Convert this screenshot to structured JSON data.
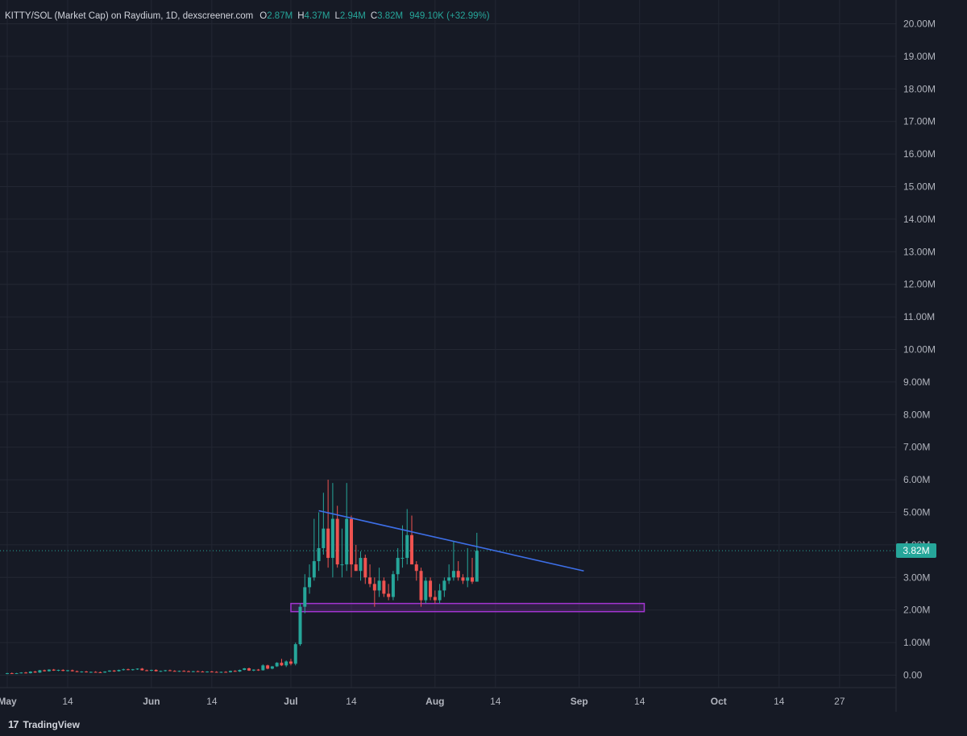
{
  "legend": {
    "symbol": "KITTY/SOL (Market Cap) on Raydium, 1D, dexscreener.com",
    "open_label": "O",
    "open": "2.87M",
    "high_label": "H",
    "high": "4.37M",
    "low_label": "L",
    "low": "2.94M",
    "close_label": "C",
    "close": "3.82M",
    "change": "949.10K (+32.99%)"
  },
  "price_tag": "3.82M",
  "brand": {
    "logo": "17",
    "name": "TradingView"
  },
  "colors": {
    "background": "#161a25",
    "grid": "#232733",
    "up": "#26a69a",
    "down": "#ef5350",
    "trendline": "#3d6fe8",
    "support_zone": "#a335d1",
    "text": "#b2b5be"
  },
  "chart_data": {
    "type": "candlestick",
    "title": "KITTY/SOL (Market Cap) on Raydium, 1D, dexscreener.com",
    "xlabel": "",
    "ylabel": "",
    "y_ticks": [
      "0.00",
      "1.00M",
      "2.00M",
      "3.00M",
      "4.00M",
      "5.00M",
      "6.00M",
      "7.00M",
      "8.00M",
      "9.00M",
      "10.00M",
      "11.00M",
      "12.00M",
      "13.00M",
      "14.00M",
      "15.00M",
      "16.00M",
      "17.00M",
      "18.00M",
      "19.00M",
      "20.00M"
    ],
    "ylim": [
      0,
      20
    ],
    "y_unit": "M",
    "x_ticks": [
      {
        "label": "May",
        "date": "2024-05-01"
      },
      {
        "label": "14",
        "date": "2024-05-14"
      },
      {
        "label": "Jun",
        "date": "2024-06-01"
      },
      {
        "label": "14",
        "date": "2024-06-14"
      },
      {
        "label": "Jul",
        "date": "2024-07-01"
      },
      {
        "label": "14",
        "date": "2024-07-14"
      },
      {
        "label": "Aug",
        "date": "2024-08-01"
      },
      {
        "label": "14",
        "date": "2024-08-14"
      },
      {
        "label": "Sep",
        "date": "2024-09-01"
      },
      {
        "label": "14",
        "date": "2024-09-14"
      },
      {
        "label": "Oct",
        "date": "2024-10-01"
      },
      {
        "label": "14",
        "date": "2024-10-14"
      },
      {
        "label": "27",
        "date": "2024-10-27"
      }
    ],
    "last_price": 3.82,
    "candles": [
      {
        "date": "2024-05-01",
        "o": 0.05,
        "h": 0.07,
        "l": 0.03,
        "c": 0.06
      },
      {
        "date": "2024-05-02",
        "o": 0.06,
        "h": 0.08,
        "l": 0.04,
        "c": 0.05
      },
      {
        "date": "2024-05-03",
        "o": 0.05,
        "h": 0.07,
        "l": 0.04,
        "c": 0.06
      },
      {
        "date": "2024-05-04",
        "o": 0.06,
        "h": 0.09,
        "l": 0.05,
        "c": 0.08
      },
      {
        "date": "2024-05-05",
        "o": 0.08,
        "h": 0.1,
        "l": 0.05,
        "c": 0.06
      },
      {
        "date": "2024-05-06",
        "o": 0.06,
        "h": 0.12,
        "l": 0.05,
        "c": 0.11
      },
      {
        "date": "2024-05-07",
        "o": 0.11,
        "h": 0.13,
        "l": 0.07,
        "c": 0.08
      },
      {
        "date": "2024-05-08",
        "o": 0.08,
        "h": 0.16,
        "l": 0.07,
        "c": 0.15
      },
      {
        "date": "2024-05-09",
        "o": 0.15,
        "h": 0.17,
        "l": 0.11,
        "c": 0.12
      },
      {
        "date": "2024-05-10",
        "o": 0.12,
        "h": 0.18,
        "l": 0.11,
        "c": 0.17
      },
      {
        "date": "2024-05-11",
        "o": 0.17,
        "h": 0.19,
        "l": 0.13,
        "c": 0.14
      },
      {
        "date": "2024-05-12",
        "o": 0.14,
        "h": 0.17,
        "l": 0.12,
        "c": 0.16
      },
      {
        "date": "2024-05-13",
        "o": 0.16,
        "h": 0.18,
        "l": 0.12,
        "c": 0.13
      },
      {
        "date": "2024-05-14",
        "o": 0.13,
        "h": 0.16,
        "l": 0.11,
        "c": 0.15
      },
      {
        "date": "2024-05-15",
        "o": 0.15,
        "h": 0.17,
        "l": 0.11,
        "c": 0.12
      },
      {
        "date": "2024-05-16",
        "o": 0.12,
        "h": 0.14,
        "l": 0.09,
        "c": 0.1
      },
      {
        "date": "2024-05-17",
        "o": 0.1,
        "h": 0.12,
        "l": 0.08,
        "c": 0.11
      },
      {
        "date": "2024-05-18",
        "o": 0.11,
        "h": 0.13,
        "l": 0.08,
        "c": 0.09
      },
      {
        "date": "2024-05-19",
        "o": 0.09,
        "h": 0.11,
        "l": 0.07,
        "c": 0.1
      },
      {
        "date": "2024-05-20",
        "o": 0.1,
        "h": 0.12,
        "l": 0.08,
        "c": 0.09
      },
      {
        "date": "2024-05-21",
        "o": 0.09,
        "h": 0.11,
        "l": 0.07,
        "c": 0.08
      },
      {
        "date": "2024-05-22",
        "o": 0.08,
        "h": 0.12,
        "l": 0.07,
        "c": 0.11
      },
      {
        "date": "2024-05-23",
        "o": 0.11,
        "h": 0.15,
        "l": 0.1,
        "c": 0.14
      },
      {
        "date": "2024-05-24",
        "o": 0.14,
        "h": 0.16,
        "l": 0.1,
        "c": 0.12
      },
      {
        "date": "2024-05-25",
        "o": 0.12,
        "h": 0.17,
        "l": 0.11,
        "c": 0.16
      },
      {
        "date": "2024-05-26",
        "o": 0.16,
        "h": 0.2,
        "l": 0.14,
        "c": 0.18
      },
      {
        "date": "2024-05-27",
        "o": 0.18,
        "h": 0.2,
        "l": 0.15,
        "c": 0.16
      },
      {
        "date": "2024-05-28",
        "o": 0.16,
        "h": 0.19,
        "l": 0.14,
        "c": 0.18
      },
      {
        "date": "2024-05-29",
        "o": 0.18,
        "h": 0.21,
        "l": 0.16,
        "c": 0.2
      },
      {
        "date": "2024-05-30",
        "o": 0.2,
        "h": 0.22,
        "l": 0.14,
        "c": 0.15
      },
      {
        "date": "2024-05-31",
        "o": 0.15,
        "h": 0.17,
        "l": 0.12,
        "c": 0.14
      },
      {
        "date": "2024-06-01",
        "o": 0.14,
        "h": 0.17,
        "l": 0.12,
        "c": 0.16
      },
      {
        "date": "2024-06-02",
        "o": 0.16,
        "h": 0.18,
        "l": 0.11,
        "c": 0.12
      },
      {
        "date": "2024-06-03",
        "o": 0.12,
        "h": 0.14,
        "l": 0.1,
        "c": 0.13
      },
      {
        "date": "2024-06-04",
        "o": 0.13,
        "h": 0.16,
        "l": 0.11,
        "c": 0.15
      },
      {
        "date": "2024-06-05",
        "o": 0.15,
        "h": 0.17,
        "l": 0.12,
        "c": 0.13
      },
      {
        "date": "2024-06-06",
        "o": 0.13,
        "h": 0.15,
        "l": 0.11,
        "c": 0.12
      },
      {
        "date": "2024-06-07",
        "o": 0.12,
        "h": 0.14,
        "l": 0.1,
        "c": 0.13
      },
      {
        "date": "2024-06-08",
        "o": 0.13,
        "h": 0.15,
        "l": 0.11,
        "c": 0.12
      },
      {
        "date": "2024-06-09",
        "o": 0.12,
        "h": 0.14,
        "l": 0.1,
        "c": 0.11
      },
      {
        "date": "2024-06-10",
        "o": 0.11,
        "h": 0.13,
        "l": 0.09,
        "c": 0.12
      },
      {
        "date": "2024-06-11",
        "o": 0.12,
        "h": 0.14,
        "l": 0.1,
        "c": 0.11
      },
      {
        "date": "2024-06-12",
        "o": 0.11,
        "h": 0.13,
        "l": 0.09,
        "c": 0.1
      },
      {
        "date": "2024-06-13",
        "o": 0.1,
        "h": 0.12,
        "l": 0.08,
        "c": 0.11
      },
      {
        "date": "2024-06-14",
        "o": 0.11,
        "h": 0.13,
        "l": 0.09,
        "c": 0.1
      },
      {
        "date": "2024-06-15",
        "o": 0.1,
        "h": 0.12,
        "l": 0.08,
        "c": 0.09
      },
      {
        "date": "2024-06-16",
        "o": 0.09,
        "h": 0.11,
        "l": 0.07,
        "c": 0.1
      },
      {
        "date": "2024-06-17",
        "o": 0.1,
        "h": 0.12,
        "l": 0.08,
        "c": 0.09
      },
      {
        "date": "2024-06-18",
        "o": 0.09,
        "h": 0.14,
        "l": 0.08,
        "c": 0.13
      },
      {
        "date": "2024-06-19",
        "o": 0.13,
        "h": 0.15,
        "l": 0.1,
        "c": 0.11
      },
      {
        "date": "2024-06-20",
        "o": 0.11,
        "h": 0.17,
        "l": 0.1,
        "c": 0.16
      },
      {
        "date": "2024-06-21",
        "o": 0.16,
        "h": 0.22,
        "l": 0.15,
        "c": 0.21
      },
      {
        "date": "2024-06-22",
        "o": 0.21,
        "h": 0.23,
        "l": 0.13,
        "c": 0.14
      },
      {
        "date": "2024-06-23",
        "o": 0.14,
        "h": 0.18,
        "l": 0.12,
        "c": 0.17
      },
      {
        "date": "2024-06-24",
        "o": 0.17,
        "h": 0.19,
        "l": 0.13,
        "c": 0.15
      },
      {
        "date": "2024-06-25",
        "o": 0.15,
        "h": 0.33,
        "l": 0.14,
        "c": 0.3
      },
      {
        "date": "2024-06-26",
        "o": 0.3,
        "h": 0.32,
        "l": 0.18,
        "c": 0.2
      },
      {
        "date": "2024-06-27",
        "o": 0.2,
        "h": 0.28,
        "l": 0.18,
        "c": 0.27
      },
      {
        "date": "2024-06-28",
        "o": 0.27,
        "h": 0.4,
        "l": 0.25,
        "c": 0.38
      },
      {
        "date": "2024-06-29",
        "o": 0.38,
        "h": 0.5,
        "l": 0.28,
        "c": 0.3
      },
      {
        "date": "2024-06-30",
        "o": 0.3,
        "h": 0.45,
        "l": 0.25,
        "c": 0.42
      },
      {
        "date": "2024-07-01",
        "o": 0.42,
        "h": 0.5,
        "l": 0.3,
        "c": 0.35
      },
      {
        "date": "2024-07-02",
        "o": 0.35,
        "h": 1.0,
        "l": 0.3,
        "c": 0.95
      },
      {
        "date": "2024-07-03",
        "o": 0.95,
        "h": 2.2,
        "l": 0.9,
        "c": 2.1
      },
      {
        "date": "2024-07-04",
        "o": 2.1,
        "h": 3.1,
        "l": 1.9,
        "c": 2.7
      },
      {
        "date": "2024-07-05",
        "o": 2.7,
        "h": 3.4,
        "l": 2.5,
        "c": 3.0
      },
      {
        "date": "2024-07-06",
        "o": 3.0,
        "h": 4.8,
        "l": 2.9,
        "c": 3.5
      },
      {
        "date": "2024-07-07",
        "o": 3.5,
        "h": 5.0,
        "l": 3.2,
        "c": 3.9
      },
      {
        "date": "2024-07-08",
        "o": 3.9,
        "h": 5.6,
        "l": 3.7,
        "c": 4.5
      },
      {
        "date": "2024-07-09",
        "o": 4.5,
        "h": 6.0,
        "l": 3.3,
        "c": 3.6
      },
      {
        "date": "2024-07-10",
        "o": 3.6,
        "h": 5.9,
        "l": 3.0,
        "c": 4.8
      },
      {
        "date": "2024-07-11",
        "o": 4.8,
        "h": 5.2,
        "l": 3.3,
        "c": 3.4
      },
      {
        "date": "2024-07-12",
        "o": 3.4,
        "h": 4.5,
        "l": 3.0,
        "c": 3.4
      },
      {
        "date": "2024-07-13",
        "o": 3.4,
        "h": 5.9,
        "l": 3.2,
        "c": 4.8
      },
      {
        "date": "2024-07-14",
        "o": 4.8,
        "h": 4.9,
        "l": 3.0,
        "c": 3.4
      },
      {
        "date": "2024-07-15",
        "o": 3.4,
        "h": 4.0,
        "l": 3.2,
        "c": 3.2
      },
      {
        "date": "2024-07-16",
        "o": 3.2,
        "h": 3.8,
        "l": 2.9,
        "c": 3.6
      },
      {
        "date": "2024-07-17",
        "o": 3.6,
        "h": 3.7,
        "l": 2.8,
        "c": 3.0
      },
      {
        "date": "2024-07-18",
        "o": 3.0,
        "h": 3.4,
        "l": 2.7,
        "c": 2.8
      },
      {
        "date": "2024-07-19",
        "o": 2.8,
        "h": 3.0,
        "l": 2.1,
        "c": 2.6
      },
      {
        "date": "2024-07-20",
        "o": 2.6,
        "h": 3.3,
        "l": 2.4,
        "c": 2.9
      },
      {
        "date": "2024-07-21",
        "o": 2.9,
        "h": 3.0,
        "l": 2.4,
        "c": 2.5
      },
      {
        "date": "2024-07-22",
        "o": 2.5,
        "h": 2.8,
        "l": 2.3,
        "c": 2.4
      },
      {
        "date": "2024-07-23",
        "o": 2.4,
        "h": 3.2,
        "l": 2.3,
        "c": 3.1
      },
      {
        "date": "2024-07-24",
        "o": 3.1,
        "h": 3.9,
        "l": 2.9,
        "c": 3.6
      },
      {
        "date": "2024-07-25",
        "o": 3.6,
        "h": 4.6,
        "l": 3.3,
        "c": 3.6
      },
      {
        "date": "2024-07-26",
        "o": 3.6,
        "h": 5.1,
        "l": 3.4,
        "c": 4.3
      },
      {
        "date": "2024-07-27",
        "o": 4.3,
        "h": 4.9,
        "l": 3.4,
        "c": 3.4
      },
      {
        "date": "2024-07-28",
        "o": 3.4,
        "h": 3.5,
        "l": 2.9,
        "c": 3.2
      },
      {
        "date": "2024-07-29",
        "o": 3.2,
        "h": 3.3,
        "l": 2.1,
        "c": 2.3
      },
      {
        "date": "2024-07-30",
        "o": 2.3,
        "h": 3.0,
        "l": 2.2,
        "c": 2.9
      },
      {
        "date": "2024-07-31",
        "o": 2.9,
        "h": 3.0,
        "l": 2.3,
        "c": 2.4
      },
      {
        "date": "2024-08-01",
        "o": 2.4,
        "h": 2.6,
        "l": 2.2,
        "c": 2.3
      },
      {
        "date": "2024-08-02",
        "o": 2.3,
        "h": 2.8,
        "l": 2.2,
        "c": 2.6
      },
      {
        "date": "2024-08-03",
        "o": 2.6,
        "h": 3.0,
        "l": 2.4,
        "c": 2.9
      },
      {
        "date": "2024-08-04",
        "o": 2.9,
        "h": 3.4,
        "l": 2.8,
        "c": 3.0
      },
      {
        "date": "2024-08-05",
        "o": 3.0,
        "h": 4.1,
        "l": 2.9,
        "c": 3.2
      },
      {
        "date": "2024-08-06",
        "o": 3.2,
        "h": 3.5,
        "l": 2.9,
        "c": 3.0
      },
      {
        "date": "2024-08-07",
        "o": 3.0,
        "h": 3.1,
        "l": 2.8,
        "c": 2.9
      },
      {
        "date": "2024-08-08",
        "o": 2.9,
        "h": 3.9,
        "l": 2.7,
        "c": 3.0
      },
      {
        "date": "2024-08-09",
        "o": 3.0,
        "h": 3.6,
        "l": 2.8,
        "c": 2.87
      },
      {
        "date": "2024-08-10",
        "o": 2.87,
        "h": 4.37,
        "l": 2.94,
        "c": 3.82
      }
    ],
    "annotations": [
      {
        "type": "trendline",
        "from": {
          "date": "2024-07-07",
          "value": 5.05
        },
        "to": {
          "date": "2024-09-02",
          "value": 3.2
        }
      },
      {
        "type": "zone",
        "from_date": "2024-07-01",
        "to_date": "2024-09-15",
        "low": 1.95,
        "high": 2.2
      }
    ],
    "grid": true
  }
}
